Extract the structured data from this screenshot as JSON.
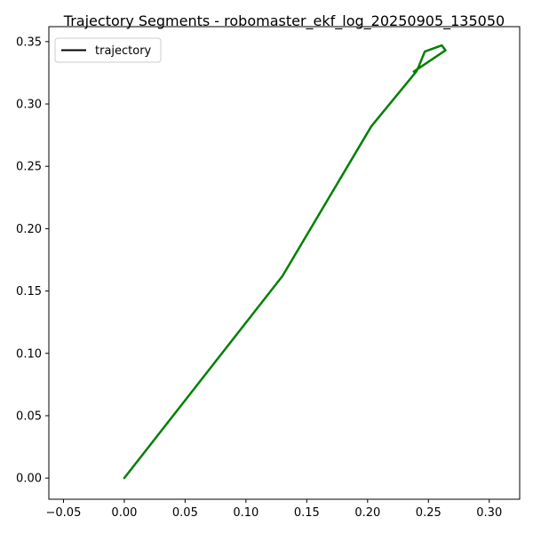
{
  "chart_data": {
    "type": "line",
    "title": "Trajectory Segments - robomaster_ekf_log_20250905_135050",
    "xlabel": "",
    "ylabel": "",
    "xlim": [
      -0.062,
      0.325
    ],
    "ylim": [
      -0.017,
      0.362
    ],
    "xticks": [
      -0.05,
      0.0,
      0.05,
      0.1,
      0.15,
      0.2,
      0.25,
      0.3
    ],
    "xtick_labels": [
      "−0.05",
      "0.00",
      "0.05",
      "0.10",
      "0.15",
      "0.20",
      "0.25",
      "0.30"
    ],
    "yticks": [
      0.0,
      0.05,
      0.1,
      0.15,
      0.2,
      0.25,
      0.3,
      0.35
    ],
    "ytick_labels": [
      "0.00",
      "0.05",
      "0.10",
      "0.15",
      "0.20",
      "0.25",
      "0.30",
      "0.35"
    ],
    "grid": false,
    "legend": {
      "position": "upper-left",
      "entries": [
        {
          "label": "trajectory",
          "color": "#000000"
        }
      ]
    },
    "series": [
      {
        "name": "trajectory",
        "color": "#008000",
        "x": [
          0.0,
          0.13,
          0.203,
          0.24,
          0.242,
          0.247,
          0.261,
          0.264,
          0.238
        ],
        "y": [
          0.0,
          0.162,
          0.282,
          0.326,
          0.33,
          0.342,
          0.347,
          0.343,
          0.326
        ]
      }
    ]
  }
}
